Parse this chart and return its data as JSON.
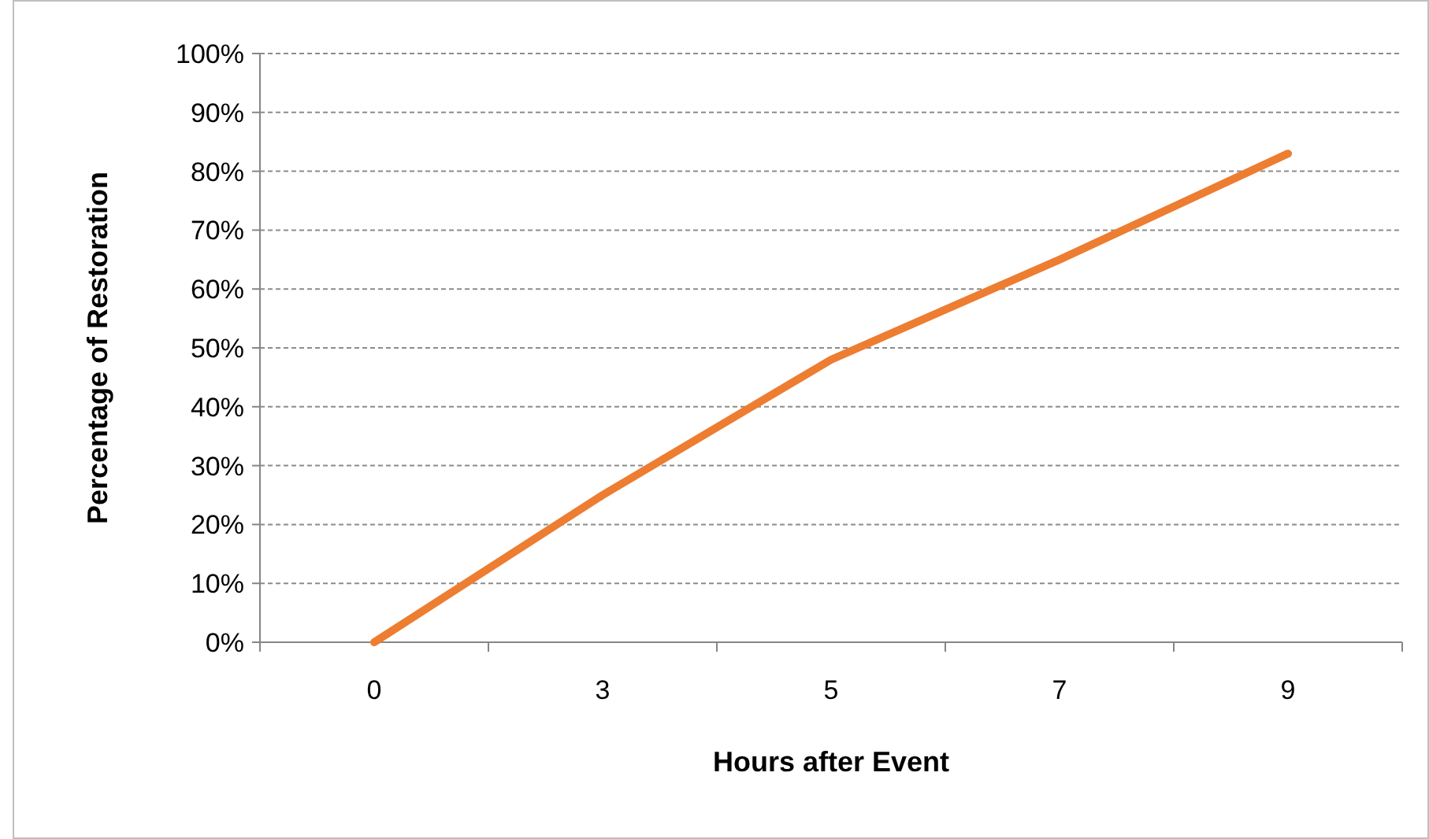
{
  "chart_data": {
    "type": "line",
    "xlabel": "Hours after Event",
    "ylabel": "Percentage of Restoration",
    "categories": [
      "0",
      "3",
      "5",
      "7",
      "9"
    ],
    "series": [
      {
        "color": "#ed7d31",
        "values": [
          0,
          25,
          48,
          65,
          83
        ]
      }
    ],
    "ylim": [
      0,
      100
    ],
    "yticks": [
      {
        "value": 0,
        "label": "0%"
      },
      {
        "value": 10,
        "label": "10%"
      },
      {
        "value": 20,
        "label": "20%"
      },
      {
        "value": 30,
        "label": "30%"
      },
      {
        "value": 40,
        "label": "40%"
      },
      {
        "value": 50,
        "label": "50%"
      },
      {
        "value": 60,
        "label": "60%"
      },
      {
        "value": 70,
        "label": "70%"
      },
      {
        "value": 80,
        "label": "80%"
      },
      {
        "value": 90,
        "label": "90%"
      },
      {
        "value": 100,
        "label": "100%"
      }
    ],
    "grid": "y",
    "marker": "none",
    "line_style": "solid"
  }
}
